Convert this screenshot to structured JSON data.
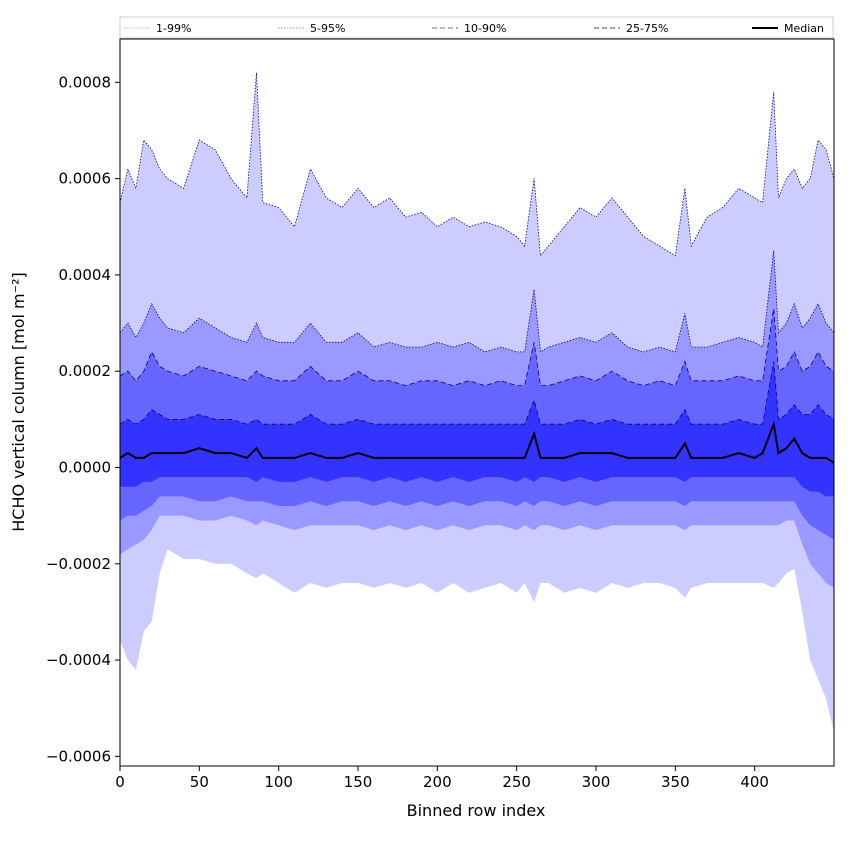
{
  "chart_data": {
    "type": "area",
    "xlabel": "Binned row index",
    "ylabel": "HCHO vertical column [mol m⁻²]",
    "xlim": [
      0,
      450
    ],
    "ylim": [
      -0.00062,
      0.00089
    ],
    "x_ticks": [
      0,
      50,
      100,
      150,
      200,
      250,
      300,
      350,
      400
    ],
    "x_tick_labels": [
      "0",
      "50",
      "100",
      "150",
      "200",
      "250",
      "300",
      "350",
      "400"
    ],
    "y_ticks": [
      -0.0006,
      -0.0004,
      -0.0002,
      0.0,
      0.0002,
      0.0004,
      0.0006,
      0.0008
    ],
    "y_tick_labels": [
      "−0.0006",
      "−0.0004",
      "−0.0002",
      "0.0000",
      "0.0002",
      "0.0004",
      "0.0006",
      "0.0008"
    ],
    "grid": false,
    "legend_placement": "top",
    "x_bins": [
      0,
      5,
      10,
      15,
      20,
      25,
      30,
      40,
      50,
      60,
      70,
      80,
      86,
      90,
      100,
      110,
      120,
      130,
      140,
      150,
      160,
      170,
      180,
      190,
      200,
      210,
      220,
      230,
      240,
      250,
      255,
      261,
      265,
      270,
      280,
      290,
      300,
      310,
      320,
      330,
      340,
      350,
      356,
      360,
      370,
      380,
      390,
      400,
      405,
      412,
      415,
      420,
      425,
      430,
      435,
      440,
      445,
      450
    ],
    "series": [
      {
        "name": "1-99%",
        "style": "dotted",
        "color": "#ccccff",
        "upper": [
          0.00055,
          0.00062,
          0.00058,
          0.00068,
          0.00066,
          0.00062,
          0.0006,
          0.00058,
          0.00068,
          0.00066,
          0.0006,
          0.00056,
          0.00082,
          0.00055,
          0.00054,
          0.0005,
          0.00062,
          0.00056,
          0.00054,
          0.00058,
          0.00054,
          0.00056,
          0.00052,
          0.00053,
          0.0005,
          0.00052,
          0.0005,
          0.00051,
          0.0005,
          0.00048,
          0.00046,
          0.0006,
          0.00044,
          0.00046,
          0.0005,
          0.00054,
          0.00052,
          0.00056,
          0.00052,
          0.00048,
          0.00046,
          0.00044,
          0.00058,
          0.00046,
          0.00052,
          0.00054,
          0.00058,
          0.00056,
          0.00055,
          0.00078,
          0.00056,
          0.0006,
          0.00062,
          0.00058,
          0.0006,
          0.00068,
          0.00066,
          0.0006
        ],
        "lower": [
          -0.00036,
          -0.0004,
          -0.00042,
          -0.00034,
          -0.00032,
          -0.00022,
          -0.00017,
          -0.00019,
          -0.00019,
          -0.0002,
          -0.0002,
          -0.00022,
          -0.00023,
          -0.00022,
          -0.00024,
          -0.00026,
          -0.00024,
          -0.00025,
          -0.00024,
          -0.00024,
          -0.00025,
          -0.00024,
          -0.00025,
          -0.00024,
          -0.00026,
          -0.00024,
          -0.00026,
          -0.00025,
          -0.00024,
          -0.00026,
          -0.00024,
          -0.00028,
          -0.00024,
          -0.00024,
          -0.00026,
          -0.00025,
          -0.00026,
          -0.00024,
          -0.00025,
          -0.00024,
          -0.00024,
          -0.00025,
          -0.00027,
          -0.00025,
          -0.00024,
          -0.00024,
          -0.00024,
          -0.00024,
          -0.00024,
          -0.00025,
          -0.00024,
          -0.00022,
          -0.00021,
          -0.0003,
          -0.0004,
          -0.00044,
          -0.00048,
          -0.00055
        ]
      },
      {
        "name": "5-95%",
        "style": "dotted",
        "color": "#9999ff",
        "upper": [
          0.00028,
          0.0003,
          0.00027,
          0.0003,
          0.00034,
          0.00031,
          0.00029,
          0.00028,
          0.00031,
          0.00029,
          0.00027,
          0.00026,
          0.0003,
          0.00027,
          0.00026,
          0.00026,
          0.0003,
          0.00026,
          0.00026,
          0.00028,
          0.00025,
          0.00026,
          0.00025,
          0.00025,
          0.00026,
          0.00025,
          0.00026,
          0.00024,
          0.00025,
          0.00024,
          0.00024,
          0.00037,
          0.00024,
          0.00025,
          0.00026,
          0.00027,
          0.00026,
          0.00028,
          0.00025,
          0.00024,
          0.00025,
          0.00024,
          0.00032,
          0.00025,
          0.00025,
          0.00026,
          0.00027,
          0.00026,
          0.00025,
          0.00045,
          0.00028,
          0.0003,
          0.00034,
          0.00029,
          0.00031,
          0.00034,
          0.0003,
          0.00028
        ],
        "lower": [
          -0.00018,
          -0.00017,
          -0.00016,
          -0.00015,
          -0.00013,
          -0.0001,
          -0.0001,
          -0.0001,
          -0.00011,
          -0.00011,
          -0.0001,
          -0.00011,
          -0.00012,
          -0.00011,
          -0.00012,
          -0.00013,
          -0.00012,
          -0.00012,
          -0.00012,
          -0.00012,
          -0.00013,
          -0.00012,
          -0.00013,
          -0.00012,
          -0.00013,
          -0.00012,
          -0.00013,
          -0.00012,
          -0.00012,
          -0.00013,
          -0.00012,
          -0.00013,
          -0.00012,
          -0.00012,
          -0.00013,
          -0.00012,
          -0.00013,
          -0.00012,
          -0.00012,
          -0.00012,
          -0.00012,
          -0.00012,
          -0.00013,
          -0.00012,
          -0.00012,
          -0.00012,
          -0.00012,
          -0.00012,
          -0.00012,
          -0.00012,
          -0.00012,
          -0.00011,
          -0.00011,
          -0.00016,
          -0.0002,
          -0.00022,
          -0.00024,
          -0.00025
        ]
      },
      {
        "name": "10-90%",
        "style": "dashed",
        "color": "#6666ff",
        "upper": [
          0.00019,
          0.0002,
          0.00018,
          0.0002,
          0.00024,
          0.00021,
          0.0002,
          0.00019,
          0.00021,
          0.0002,
          0.00019,
          0.00018,
          0.0002,
          0.00019,
          0.00018,
          0.00018,
          0.00021,
          0.00018,
          0.00018,
          0.0002,
          0.00018,
          0.00018,
          0.00017,
          0.00018,
          0.00018,
          0.00017,
          0.00018,
          0.00017,
          0.00018,
          0.00017,
          0.00017,
          0.00026,
          0.00017,
          0.00017,
          0.00018,
          0.00019,
          0.00018,
          0.0002,
          0.00018,
          0.00017,
          0.00018,
          0.00017,
          0.00022,
          0.00018,
          0.00018,
          0.00018,
          0.00019,
          0.00018,
          0.00018,
          0.00033,
          0.0002,
          0.00021,
          0.00024,
          0.0002,
          0.00021,
          0.00024,
          0.00021,
          0.0002
        ],
        "lower": [
          -0.00011,
          -0.0001,
          -0.0001,
          -9e-05,
          -8e-05,
          -6e-05,
          -6e-05,
          -6e-05,
          -7e-05,
          -7e-05,
          -6e-05,
          -7e-05,
          -7e-05,
          -7e-05,
          -8e-05,
          -8e-05,
          -7e-05,
          -8e-05,
          -7e-05,
          -7e-05,
          -8e-05,
          -7e-05,
          -8e-05,
          -7e-05,
          -8e-05,
          -7e-05,
          -8e-05,
          -7e-05,
          -7e-05,
          -8e-05,
          -7e-05,
          -8e-05,
          -7e-05,
          -7e-05,
          -8e-05,
          -7e-05,
          -8e-05,
          -7e-05,
          -7e-05,
          -7e-05,
          -7e-05,
          -7e-05,
          -8e-05,
          -7e-05,
          -7e-05,
          -7e-05,
          -7e-05,
          -7e-05,
          -7e-05,
          -7e-05,
          -7e-05,
          -7e-05,
          -7e-05,
          -0.0001,
          -0.00012,
          -0.00013,
          -0.00014,
          -0.00015
        ]
      },
      {
        "name": "25-75%",
        "style": "dashed",
        "color": "#3333ff",
        "upper": [
          9e-05,
          0.0001,
          9e-05,
          0.0001,
          0.00012,
          0.00011,
          0.0001,
          0.0001,
          0.00011,
          0.0001,
          0.0001,
          9e-05,
          0.0001,
          9e-05,
          9e-05,
          9e-05,
          0.00011,
          9e-05,
          9e-05,
          0.0001,
          9e-05,
          9e-05,
          9e-05,
          9e-05,
          9e-05,
          9e-05,
          9e-05,
          9e-05,
          9e-05,
          9e-05,
          9e-05,
          0.00014,
          9e-05,
          9e-05,
          9e-05,
          0.0001,
          9e-05,
          0.0001,
          9e-05,
          9e-05,
          9e-05,
          9e-05,
          0.00012,
          9e-05,
          9e-05,
          9e-05,
          0.0001,
          9e-05,
          9e-05,
          0.00022,
          0.0001,
          0.00011,
          0.00013,
          0.00011,
          0.00011,
          0.00013,
          0.00011,
          0.0001
        ],
        "lower": [
          -4e-05,
          -4e-05,
          -4e-05,
          -3e-05,
          -3e-05,
          -2e-05,
          -2e-05,
          -2e-05,
          -2e-05,
          -2e-05,
          -2e-05,
          -2e-05,
          -3e-05,
          -2e-05,
          -3e-05,
          -3e-05,
          -2e-05,
          -3e-05,
          -2e-05,
          -2e-05,
          -3e-05,
          -2e-05,
          -3e-05,
          -2e-05,
          -3e-05,
          -2e-05,
          -3e-05,
          -2e-05,
          -2e-05,
          -3e-05,
          -2e-05,
          -3e-05,
          -2e-05,
          -2e-05,
          -3e-05,
          -2e-05,
          -3e-05,
          -2e-05,
          -2e-05,
          -2e-05,
          -2e-05,
          -2e-05,
          -3e-05,
          -2e-05,
          -2e-05,
          -2e-05,
          -2e-05,
          -2e-05,
          -2e-05,
          -2e-05,
          -2e-05,
          -2e-05,
          -2e-05,
          -4e-05,
          -5e-05,
          -5e-05,
          -6e-05,
          -6e-05
        ]
      },
      {
        "name": "Median",
        "style": "solid",
        "color": "#000000",
        "values": [
          2e-05,
          3e-05,
          2e-05,
          2e-05,
          3e-05,
          3e-05,
          3e-05,
          3e-05,
          4e-05,
          3e-05,
          3e-05,
          2e-05,
          4e-05,
          2e-05,
          2e-05,
          2e-05,
          3e-05,
          2e-05,
          2e-05,
          3e-05,
          2e-05,
          2e-05,
          2e-05,
          2e-05,
          2e-05,
          2e-05,
          2e-05,
          2e-05,
          2e-05,
          2e-05,
          2e-05,
          7e-05,
          2e-05,
          2e-05,
          2e-05,
          3e-05,
          3e-05,
          3e-05,
          2e-05,
          2e-05,
          2e-05,
          2e-05,
          5e-05,
          2e-05,
          2e-05,
          2e-05,
          3e-05,
          2e-05,
          3e-05,
          9e-05,
          3e-05,
          4e-05,
          6e-05,
          3e-05,
          2e-05,
          2e-05,
          2e-05,
          1e-05
        ]
      }
    ]
  }
}
